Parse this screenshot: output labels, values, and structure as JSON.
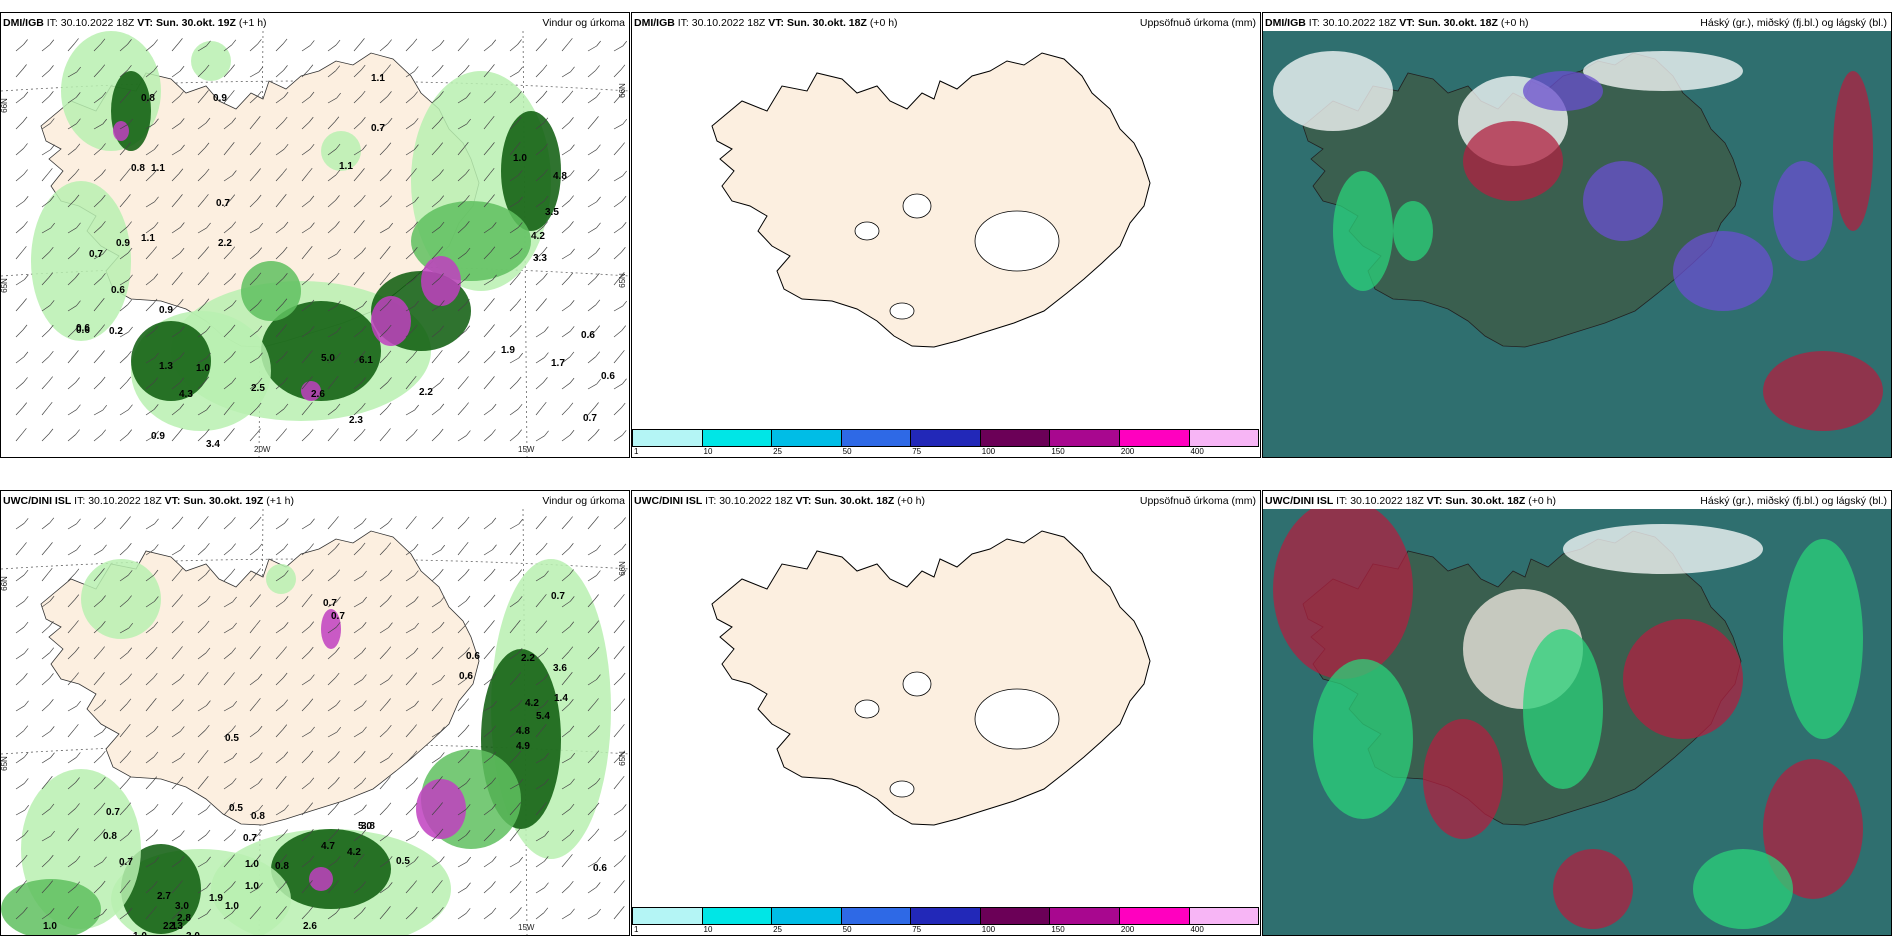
{
  "panels": [
    {
      "model": "DMI/IGB",
      "it_label": "IT:",
      "it": "30.10.2022 18Z",
      "vt_label": "VT:",
      "vt": "Sun. 30.okt. 19Z",
      "lead": "(+1 h)",
      "title": "Vindur og úrkoma"
    },
    {
      "model": "DMI/IGB",
      "it_label": "IT:",
      "it": "30.10.2022 18Z",
      "vt_label": "VT:",
      "vt": "Sun. 30.okt. 18Z",
      "lead": "(+0 h)",
      "title": "Uppsöfnuð úrkoma (mm)"
    },
    {
      "model": "DMI/IGB",
      "it_label": "IT:",
      "it": "30.10.2022 18Z",
      "vt_label": "VT:",
      "vt": "Sun. 30.okt. 18Z",
      "lead": "(+0 h)",
      "title": "Háský (gr.), miðský (fj.bl.) og lágský (bl.)"
    },
    {
      "model": "UWC/DINI ISL",
      "it_label": "IT:",
      "it": "30.10.2022 18Z",
      "vt_label": "VT:",
      "vt": "Sun. 30.okt. 19Z",
      "lead": "(+1 h)",
      "title": "Vindur og úrkoma"
    },
    {
      "model": "UWC/DINI ISL",
      "it_label": "IT:",
      "it": "30.10.2022 18Z",
      "vt_label": "VT:",
      "vt": "Sun. 30.okt. 18Z",
      "lead": "(+0 h)",
      "title": "Uppsöfnuð úrkoma (mm)"
    },
    {
      "model": "UWC/DINI ISL",
      "it_label": "IT:",
      "it": "30.10.2022 18Z",
      "vt_label": "VT:",
      "vt": "Sun. 30.okt. 18Z",
      "lead": "(+0 h)",
      "title": "Háský (gr.), miðský (fj.bl.) og lágský (bl.)"
    }
  ],
  "axis_labels": {
    "lat66": "66N",
    "lat65": "65N",
    "lon20": "20W",
    "lon15": "15W"
  },
  "colorbar": {
    "colors": [
      "#b4f5f5",
      "#00e6e6",
      "#00bde6",
      "#2e69e6",
      "#2228b8",
      "#6b0057",
      "#a8078f",
      "#ff00bf",
      "#f7b5f5"
    ],
    "ticks": [
      "1",
      "10",
      "25",
      "50",
      "75",
      "100",
      "150",
      "200",
      "400"
    ]
  },
  "precip_labels_top": [
    "0.8",
    "5.0",
    "2.6",
    "1.1",
    "4.8",
    "3.5",
    "4.2",
    "3.3",
    "1.9",
    "1.7",
    "0.6",
    "0.6",
    "2.2",
    "2.3",
    "6.1",
    "0.7",
    "1.1",
    "1.0",
    "0.8",
    "0.7",
    "0.9",
    "1.1",
    "2.2",
    "0.6",
    "0.9",
    "0.6",
    "0.2",
    "1.3",
    "1.0",
    "4.3",
    "0.9",
    "3.4",
    "2.5",
    "1.1",
    "0.7",
    "0.9",
    "0.6",
    "0.7"
  ],
  "precip_labels_bottom": [
    "0.7",
    "2.2",
    "3.6",
    "1.4",
    "4.2",
    "5.4",
    "4.8",
    "4.9",
    "0.6",
    "0.7",
    "0.5",
    "0.8",
    "0.7",
    "4.7",
    "5.0",
    "4.2",
    "3.8",
    "0.5",
    "0.8",
    "1.0",
    "1.0",
    "1.9",
    "2.7",
    "3.0",
    "2.8",
    "1.0",
    "2.1",
    "3.0",
    "0.7",
    "0.8",
    "0.7",
    "1.0",
    "2.6",
    "1.0",
    "2.3",
    "0.6",
    "0.6",
    "0.7",
    "0.5"
  ],
  "colors": {
    "land": "#fcefe0",
    "green_light": "#b8f0b0",
    "green_mid": "#5fbf5f",
    "green_dark": "#0a5a0a",
    "purple": "#c040c0",
    "cloud_teal": "#2f6f6f",
    "cloud_green": "#2bd17a",
    "cloud_red": "#b02040",
    "cloud_violet": "#6a4fcf"
  }
}
